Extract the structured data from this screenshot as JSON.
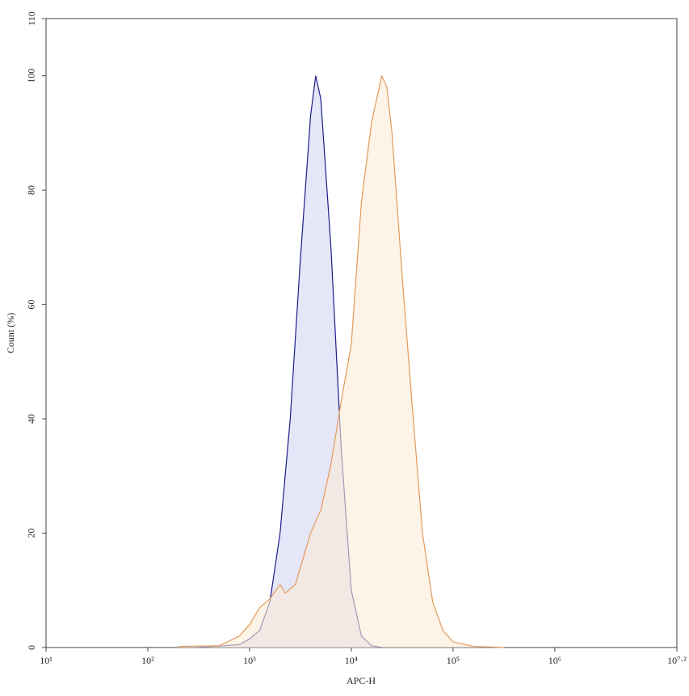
{
  "chart_data": {
    "type": "area",
    "xlabel": "APC-H",
    "ylabel": "Count (%)",
    "xscale": "log",
    "xlim": [
      10,
      15848931.92
    ],
    "ylim": [
      0,
      110
    ],
    "xticks": [
      {
        "value": 10,
        "label": "10¹"
      },
      {
        "value": 100,
        "label": "10²"
      },
      {
        "value": 1000,
        "label": "10³"
      },
      {
        "value": 10000,
        "label": "10⁴"
      },
      {
        "value": 100000,
        "label": "10⁵"
      },
      {
        "value": 1000000,
        "label": "10⁶"
      },
      {
        "value": 15848931.92,
        "label": "10⁷·²"
      }
    ],
    "yticks": [
      0,
      20,
      40,
      60,
      80,
      100,
      110
    ],
    "series": [
      {
        "color": "#1c1c8a",
        "fill": "#d6d6f5",
        "x": [
          316,
          794,
          1000,
          1259,
          1585,
          1995,
          2512,
          3162,
          3981,
          4467,
          5012,
          6310,
          7943,
          10000,
          12589,
          15849,
          19953
        ],
        "values": [
          0,
          0.5,
          1.5,
          3,
          8,
          20,
          40,
          68,
          93,
          100,
          96,
          70,
          35,
          10,
          2,
          0.3,
          0
        ]
      },
      {
        "color": "#e39a5c",
        "fill": "#fcebd6",
        "x": [
          200,
          501,
          794,
          1000,
          1259,
          1585,
          1995,
          2239,
          2818,
          3162,
          3981,
          5012,
          6310,
          7943,
          10000,
          12589,
          15849,
          19953,
          22387,
          25119,
          31623,
          39811,
          50119,
          63096,
          79433,
          100000,
          158489,
          316228
        ],
        "values": [
          0.2,
          0.3,
          2,
          4,
          7,
          8.5,
          11,
          9.5,
          11,
          14,
          20,
          24,
          32,
          43,
          53,
          78,
          92,
          100,
          98,
          90,
          65,
          42,
          20,
          8,
          3,
          1,
          0.2,
          0
        ]
      }
    ]
  }
}
